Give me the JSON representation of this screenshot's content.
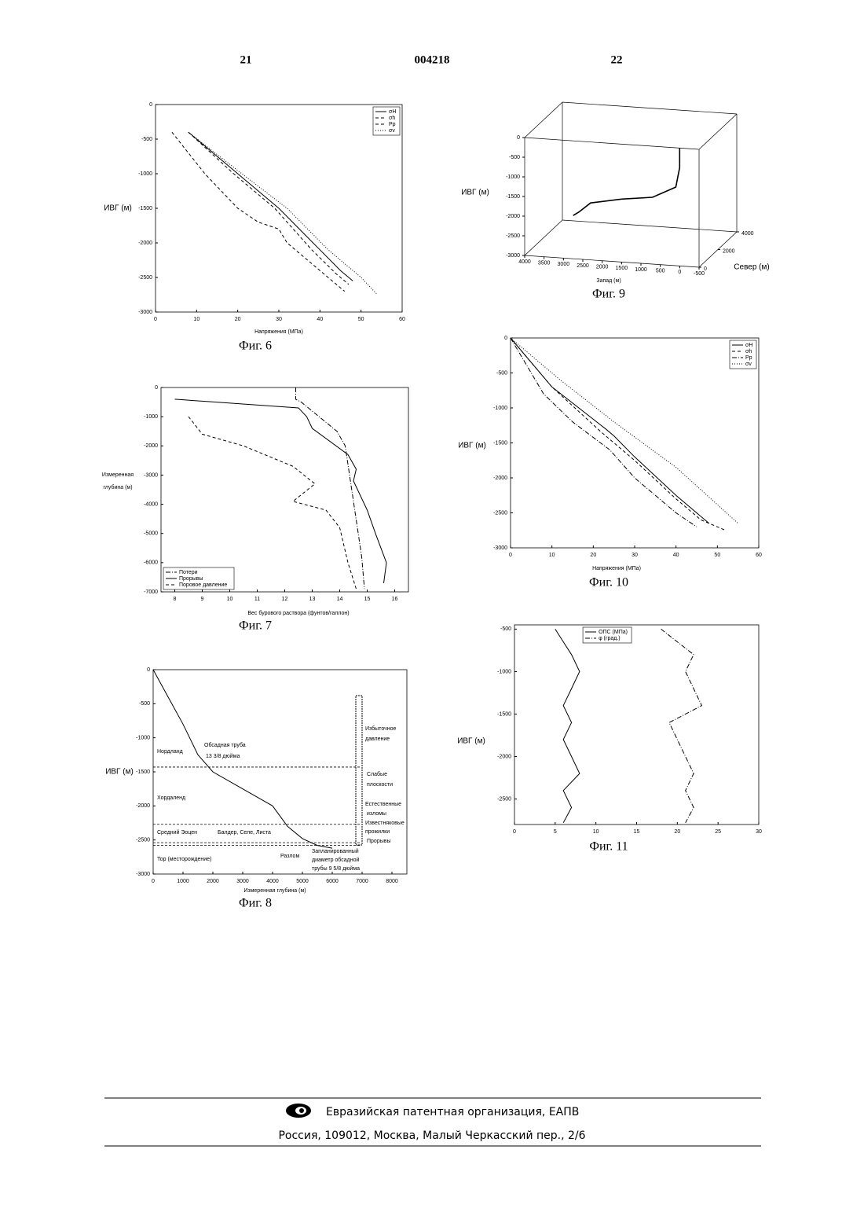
{
  "header": {
    "left_page": "21",
    "number": "004218",
    "right_page": "22"
  },
  "chart_data": [
    {
      "type": "line",
      "caption": "Фиг. 6",
      "xlabel": "Напряжения (МПа)",
      "ylabel": "ИВГ (м)",
      "xlim": [
        0,
        60
      ],
      "ylim": [
        -3000,
        0
      ],
      "xticks": [
        0,
        10,
        20,
        30,
        40,
        50,
        60
      ],
      "yticks": [
        0,
        -500,
        -1000,
        -1500,
        -2000,
        -2500,
        -3000
      ],
      "legend": "upper right",
      "series": [
        {
          "name": "σH",
          "style": "solid",
          "color": "#000",
          "x": [
            8,
            20,
            30,
            40,
            45,
            48
          ],
          "values": [
            -400,
            -1000,
            -1500,
            -2100,
            -2400,
            -2550
          ]
        },
        {
          "name": "σh",
          "style": "dashed",
          "color": "#000",
          "x": [
            8,
            19,
            29,
            38,
            44,
            47
          ],
          "values": [
            -400,
            -1000,
            -1500,
            -2100,
            -2450,
            -2600
          ]
        },
        {
          "name": "Pp",
          "style": "dashed",
          "color": "#000",
          "x": [
            4,
            12,
            20,
            25,
            30,
            32,
            40,
            46
          ],
          "values": [
            -400,
            -1000,
            -1500,
            -1700,
            -1800,
            -2000,
            -2400,
            -2700
          ]
        },
        {
          "name": "σv",
          "style": "dotted",
          "color": "#000",
          "x": [
            8,
            21,
            32,
            42,
            50,
            54
          ],
          "values": [
            -400,
            -1000,
            -1500,
            -2100,
            -2500,
            -2750
          ]
        }
      ]
    },
    {
      "type": "line3d",
      "caption": "Фиг. 9",
      "xlabel": "Запад (м)",
      "ylabel": "Север (м)",
      "zlabel": "ИВГ (м)",
      "xlim": [
        4000,
        -500
      ],
      "ylim": [
        0,
        4000
      ],
      "zlim": [
        -3000,
        0
      ],
      "xticks": [
        4000,
        3500,
        3000,
        2500,
        2000,
        1500,
        1000,
        500,
        0,
        -500
      ],
      "yticks": [
        0,
        2000,
        4000
      ],
      "zticks": [
        0,
        -500,
        -1000,
        -1500,
        -2000,
        -2500,
        -3000
      ],
      "west": [
        0,
        0,
        100,
        700,
        1500,
        2300,
        2600,
        2750
      ],
      "north": [
        0,
        0,
        0,
        0,
        0,
        0,
        0,
        0
      ],
      "values": [
        0,
        -500,
        -1000,
        -1300,
        -1400,
        -1550,
        -1800,
        -1900
      ],
      "color": "#000"
    },
    {
      "type": "line",
      "caption": "Фиг. 7",
      "xlabel": "Вес бурового раствора (фунтов/галлон)",
      "ylabel": [
        "Измеренная",
        "глубина (м)"
      ],
      "xlim": [
        7.5,
        16.5
      ],
      "ylim": [
        -7000,
        0
      ],
      "xticks": [
        8,
        9,
        10,
        11,
        12,
        13,
        14,
        15,
        16
      ],
      "yticks": [
        0,
        -1000,
        -2000,
        -3000,
        -4000,
        -5000,
        -6000,
        -7000
      ],
      "legend": "lower left",
      "series": [
        {
          "name": "Потери",
          "style": "dashdot",
          "color": "#000",
          "x": [
            12.4,
            12.4,
            12.6,
            13.9,
            14.2,
            14.8,
            14.9
          ],
          "values": [
            0,
            -400,
            -500,
            -1500,
            -2000,
            -5800,
            -6900
          ]
        },
        {
          "name": "Прорывы",
          "style": "solid",
          "color": "#000",
          "x": [
            8,
            12.5,
            12.8,
            13,
            14.3,
            14.6,
            14.5,
            15,
            15.3,
            15.7,
            15.6
          ],
          "values": [
            -400,
            -700,
            -1000,
            -1400,
            -2300,
            -2800,
            -3200,
            -4200,
            -5000,
            -6000,
            -6700
          ]
        },
        {
          "name": "Поровое давление",
          "style": "dashed",
          "color": "#000",
          "x": [
            8.5,
            9,
            10.5,
            12.3,
            13.1,
            12.3,
            13.5,
            14,
            14.3,
            14.6
          ],
          "values": [
            -1000,
            -1600,
            -2000,
            -2700,
            -3300,
            -3900,
            -4200,
            -4800,
            -6000,
            -6900
          ]
        }
      ]
    },
    {
      "type": "line",
      "caption": "Фиг. 10",
      "xlabel": "Напряжения (МПа)",
      "ylabel": "ИВГ (м)",
      "xlim": [
        0,
        60
      ],
      "ylim": [
        -3000,
        0
      ],
      "xticks": [
        0,
        10,
        20,
        30,
        40,
        50,
        60
      ],
      "yticks": [
        0,
        -500,
        -1000,
        -1500,
        -2000,
        -2500,
        -3000
      ],
      "legend": "upper right",
      "series": [
        {
          "name": "σH",
          "style": "solid",
          "color": "#000",
          "x": [
            0,
            10,
            23,
            25,
            30,
            40,
            48
          ],
          "values": [
            0,
            -700,
            -1300,
            -1400,
            -1700,
            -2250,
            -2650
          ]
        },
        {
          "name": "σh",
          "style": "dashed",
          "color": "#000",
          "x": [
            0,
            10,
            22,
            30,
            40,
            46,
            52
          ],
          "values": [
            0,
            -700,
            -1350,
            -1750,
            -2300,
            -2600,
            -2750
          ]
        },
        {
          "name": "Pp",
          "style": "dashdot",
          "color": "#000",
          "x": [
            0,
            8,
            15,
            24,
            30,
            40,
            45
          ],
          "values": [
            0,
            -800,
            -1200,
            -1600,
            -2000,
            -2500,
            -2700
          ]
        },
        {
          "name": "σv",
          "style": "dotted",
          "color": "#000",
          "x": [
            0,
            12,
            25,
            40,
            55
          ],
          "values": [
            0,
            -600,
            -1200,
            -1850,
            -2650
          ]
        }
      ]
    },
    {
      "type": "line",
      "caption": "Фиг. 8",
      "xlabel": "Измеренная     глубина (м)",
      "ylabel": "ИВГ (м)",
      "xlim": [
        0,
        8500
      ],
      "ylim": [
        -3000,
        0
      ],
      "xticks": [
        0,
        1000,
        2000,
        3000,
        4000,
        5000,
        6000,
        7000,
        8000
      ],
      "yticks": [
        0,
        -500,
        -1000,
        -1500,
        -2000,
        -2500,
        -3000
      ],
      "horizon_lines": [
        -1430,
        -2270,
        -2540,
        -2580
      ],
      "series": [
        {
          "style": "solid",
          "color": "#000",
          "x": [
            0,
            500,
            1000,
            1500,
            2000,
            3000,
            4000,
            4500,
            5000,
            5500,
            6000
          ],
          "values": [
            0,
            -400,
            -800,
            -1250,
            -1500,
            -1750,
            -2000,
            -2300,
            -2480,
            -2580,
            -2620
          ]
        }
      ],
      "annotations": [
        "Нордланд",
        "Обсадная труба",
        "13 3/8 дюйма",
        "Хордаленд",
        "Средний Эоцен",
        "Балдер, Селе, Листа",
        "Тор (месторождение)",
        "Разлом",
        "Запланированный",
        "диаметр обсадной",
        "трубы 9 5/8 дюйма",
        "Избыточное",
        "давление",
        "Слабые",
        "плоскости",
        "Естественные",
        "изломы",
        "Известняковые",
        "прожилки",
        "Прорывы"
      ]
    },
    {
      "type": "line",
      "caption": "Фиг. 11",
      "ylabel": "ИВГ (м)",
      "xlim": [
        0,
        30
      ],
      "ylim": [
        -2800,
        -450
      ],
      "xticks": [
        0,
        5,
        10,
        15,
        20,
        25,
        30
      ],
      "yticks": [
        -500,
        -1000,
        -1500,
        -2000,
        -2500
      ],
      "legend": "upper center",
      "series": [
        {
          "name": "ОПС (МПа)",
          "style": "solid",
          "color": "#000",
          "x": [
            5,
            6,
            7,
            8,
            7,
            6,
            7,
            6,
            7,
            8,
            6,
            7,
            6
          ],
          "values": [
            -500,
            -650,
            -800,
            -1000,
            -1200,
            -1400,
            -1600,
            -1800,
            -2000,
            -2200,
            -2400,
            -2600,
            -2780
          ]
        },
        {
          "name": "φ (град.)",
          "style": "dashdot",
          "color": "#000",
          "x": [
            18,
            20,
            22,
            21,
            22,
            23,
            19,
            20,
            21,
            22,
            21,
            22,
            21
          ],
          "values": [
            -500,
            -650,
            -800,
            -1000,
            -1200,
            -1400,
            -1600,
            -1800,
            -2000,
            -2200,
            -2400,
            -2600,
            -2780
          ]
        }
      ]
    }
  ],
  "footer": {
    "organization": "Евразийская патентная организация, ЕАПВ",
    "address": "Россия, 109012, Москва, Малый Черкасский пер., 2/6"
  }
}
